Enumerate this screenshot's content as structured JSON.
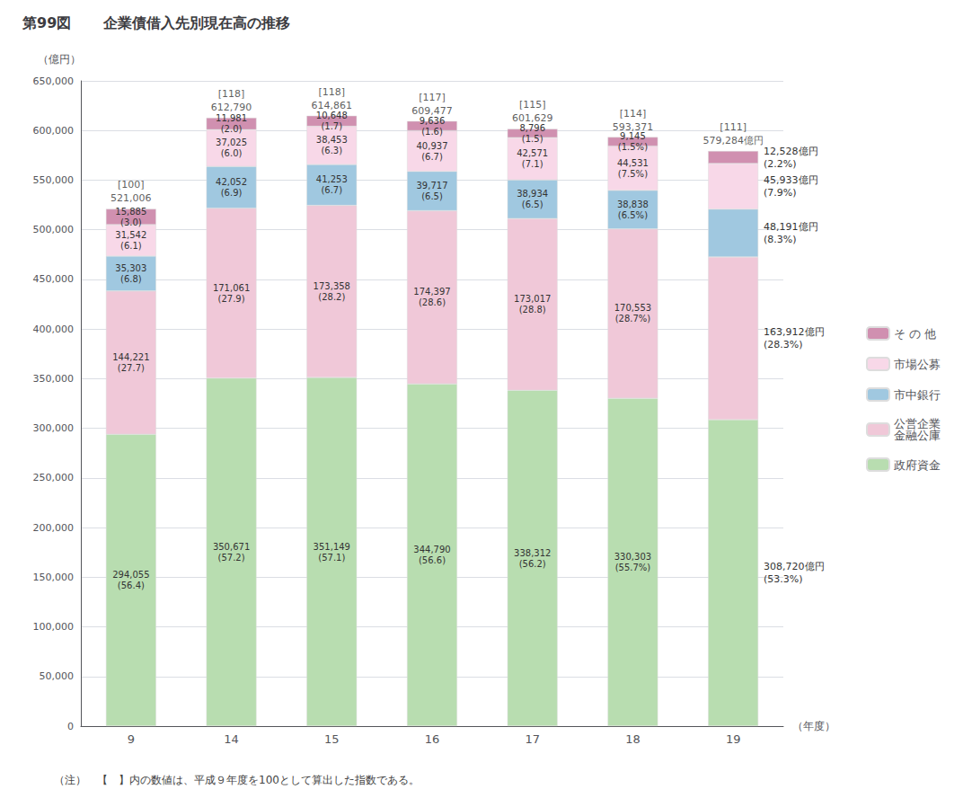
{
  "chart_data": {
    "type": "bar",
    "title": "企業債借入先別現在高の推移",
    "subtitle": "第99図",
    "x_label": "（年度）",
    "y_label": "（億円）",
    "annotations": [
      "（注）　【　】内の数値は、平成９年度を100として算出した指数である。"
    ],
    "categories": [
      "9",
      "14",
      "15",
      "16",
      "17",
      "18",
      "19"
    ],
    "stacked": true,
    "data_labels": true,
    "legend": "right",
    "grid": true,
    "ylim": [
      0,
      650000
    ],
    "yticks": [
      0,
      {
        "value": 50000,
        "label": "50,000"
      },
      {
        "value": 100000,
        "label": "100,000"
      },
      {
        "value": 150000,
        "label": "150,000"
      },
      {
        "value": 200000,
        "label": "200,000"
      },
      {
        "value": 250000,
        "label": "250,000"
      },
      {
        "value": 300000,
        "label": "300,000"
      },
      {
        "value": 350000,
        "label": "350,000"
      },
      {
        "value": 400000,
        "label": "400,000"
      },
      {
        "value": 450000,
        "label": "450,000"
      },
      {
        "value": 500000,
        "label": "500,000"
      },
      {
        "value": 550000,
        "label": "550,000"
      },
      {
        "value": 600000,
        "label": "600,000"
      },
      {
        "value": 650000,
        "label": "650,000"
      }
    ],
    "series": [
      {
        "name": "政府資金",
        "color": "#b8ddb0",
        "values": [
          294055,
          350671,
          351149,
          344790,
          338312,
          330303,
          308720
        ],
        "value_labels": [
          "294,055\n(56.4)",
          "350,671\n(57.2)",
          "351,149\n(57.1)",
          "344,790\n(56.6)",
          "338,312\n(56.2)",
          "330,303\n(55.7%)",
          "308,720億円\n(53.3%)"
        ]
      },
      {
        "name": "公営企業\n金融公庫",
        "color": "#f0c8d8",
        "values": [
          144221,
          171061,
          173358,
          174397,
          173017,
          170553,
          163912
        ],
        "value_labels": [
          "144,221\n(27.7)",
          "171,061\n(27.9)",
          "173,358\n(28.2)",
          "174,397\n(28.6)",
          "173,017\n(28.8)",
          "170,553\n(28.7%)",
          "163,912億円\n(28.3%)"
        ]
      },
      {
        "name": "市中銀行",
        "color": "#a0c8e0",
        "values": [
          35303,
          42052,
          41253,
          39717,
          38934,
          38838,
          48191
        ],
        "value_labels": [
          "35,303\n(6.8)",
          "42,052\n(6.9)",
          "41,253\n(6.7)",
          "39,717\n(6.5)",
          "38,934\n(6.5)",
          "38,838\n(6.5%)",
          "48,191億円\n(8.3%)"
        ]
      },
      {
        "name": "市場公募",
        "color": "#f8d8e8",
        "values": [
          31542,
          37025,
          38453,
          40937,
          42571,
          44531,
          45933
        ],
        "value_labels": [
          "31,542\n(6.1)",
          "37,025\n(6.0)",
          "38,453\n(6.3)",
          "40,937\n(6.7)",
          "42,571\n(7.1)",
          "44,531\n(7.5%)",
          "45,933億円\n(7.9%)"
        ]
      },
      {
        "name": "そ の 他",
        "color": "#d090b0",
        "values": [
          15885,
          11981,
          10648,
          9636,
          8796,
          9145,
          12528
        ],
        "value_labels": [
          "15,885\n(3.0)",
          "11,981\n(2.0)",
          "10,648\n(1.7)",
          "9,636\n(1.6)",
          "8,796\n(1.5)",
          "9,145\n(1.5%)",
          "12,528億円\n(2.2%)"
        ]
      }
    ],
    "totals": [
      521006,
      612790,
      614861,
      609477,
      601629,
      593371,
      579284
    ],
    "total_labels": [
      "521,006",
      "612,790",
      "614,861",
      "609,477",
      "601,629",
      "593,371",
      "579,284億円"
    ],
    "index": [
      100,
      118,
      118,
      117,
      115,
      114,
      111
    ],
    "index_labels": [
      "[100]",
      "[118]",
      "[118]",
      "[117]",
      "[115]",
      "[114]",
      "[111]"
    ]
  }
}
